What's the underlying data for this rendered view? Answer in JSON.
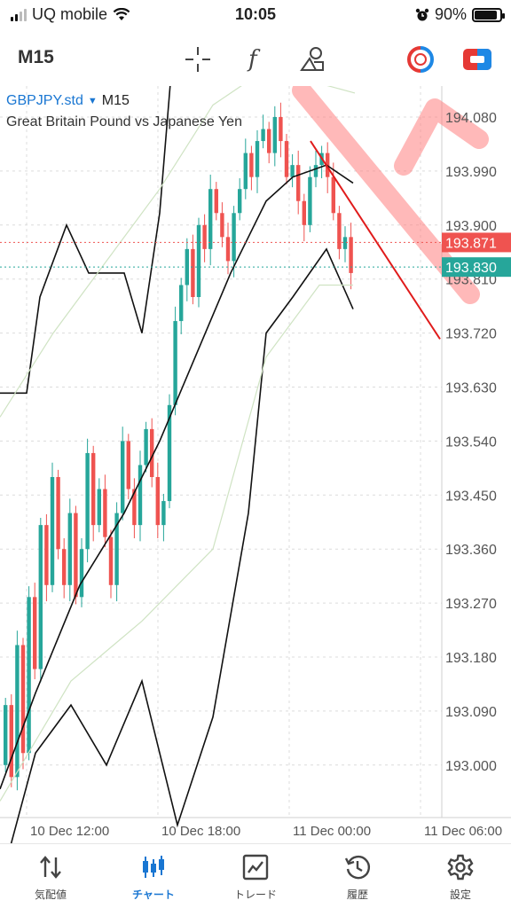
{
  "status_bar": {
    "carrier": "UQ mobile",
    "time": "10:05",
    "battery": "90%",
    "battery_level": 0.9
  },
  "toolbar": {
    "timeframe": "M15",
    "tools": [
      {
        "icon": "crosshair-icon"
      },
      {
        "icon": "indicator-f-icon"
      },
      {
        "icon": "objects-icon"
      },
      {
        "icon": "one-click-trading-icon"
      },
      {
        "icon": "trade-ticket-icon"
      }
    ]
  },
  "chart": {
    "symbol": "GBPJPY.std",
    "timeframe": "M15",
    "description": "Great Britain Pound vs Japanese Yen",
    "colors": {
      "bull": "#26a69a",
      "bear": "#ef5350",
      "bands": "#111111",
      "outer_bands": "#cfe3c3",
      "trendline": "#e01b1b",
      "annotation": "#ff8080",
      "grid": "#dcdcdc"
    },
    "price_labels": [
      "194.080",
      "193.990",
      "193.900",
      "193.810",
      "193.720",
      "193.630",
      "193.540",
      "193.450",
      "193.360",
      "193.270",
      "193.180",
      "193.090",
      "193.000"
    ],
    "time_labels": [
      "10 Dec 12:00",
      "10 Dec 18:00",
      "11 Dec 00:00",
      "11 Dec 06:00"
    ],
    "bid": "193.871",
    "ask": "193.830"
  },
  "bottom_nav": [
    {
      "label": "気配値",
      "icon": "quotes-icon",
      "active": false
    },
    {
      "label": "チャート",
      "icon": "chart-candles-icon",
      "active": true
    },
    {
      "label": "トレード",
      "icon": "trade-icon",
      "active": false
    },
    {
      "label": "履歴",
      "icon": "history-icon",
      "active": false
    },
    {
      "label": "設定",
      "icon": "settings-icon",
      "active": false
    }
  ]
}
